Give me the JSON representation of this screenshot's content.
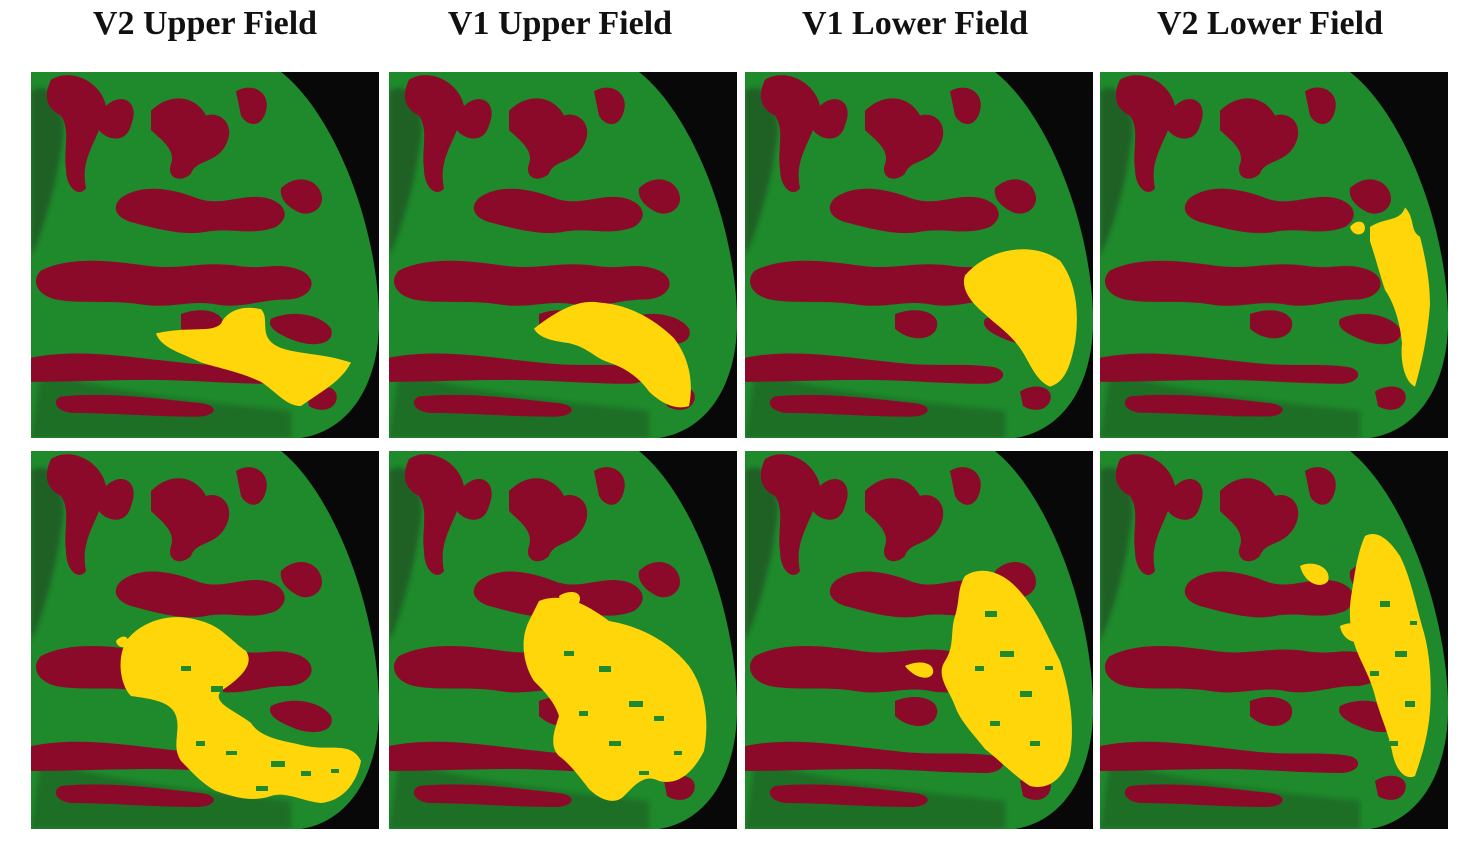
{
  "figure": {
    "columns": [
      {
        "title": "V2 Upper Field"
      },
      {
        "title": "V1 Upper Field"
      },
      {
        "title": "V1 Lower Field"
      },
      {
        "title": "V2 Lower Field"
      }
    ],
    "colors": {
      "background": "#ffffff",
      "panel_bg": "#080808",
      "gyri": "#1f8a2c",
      "sulci": "#8c0a29",
      "activation": "#ffd60a",
      "shadow": "#1c3e1f"
    }
  }
}
